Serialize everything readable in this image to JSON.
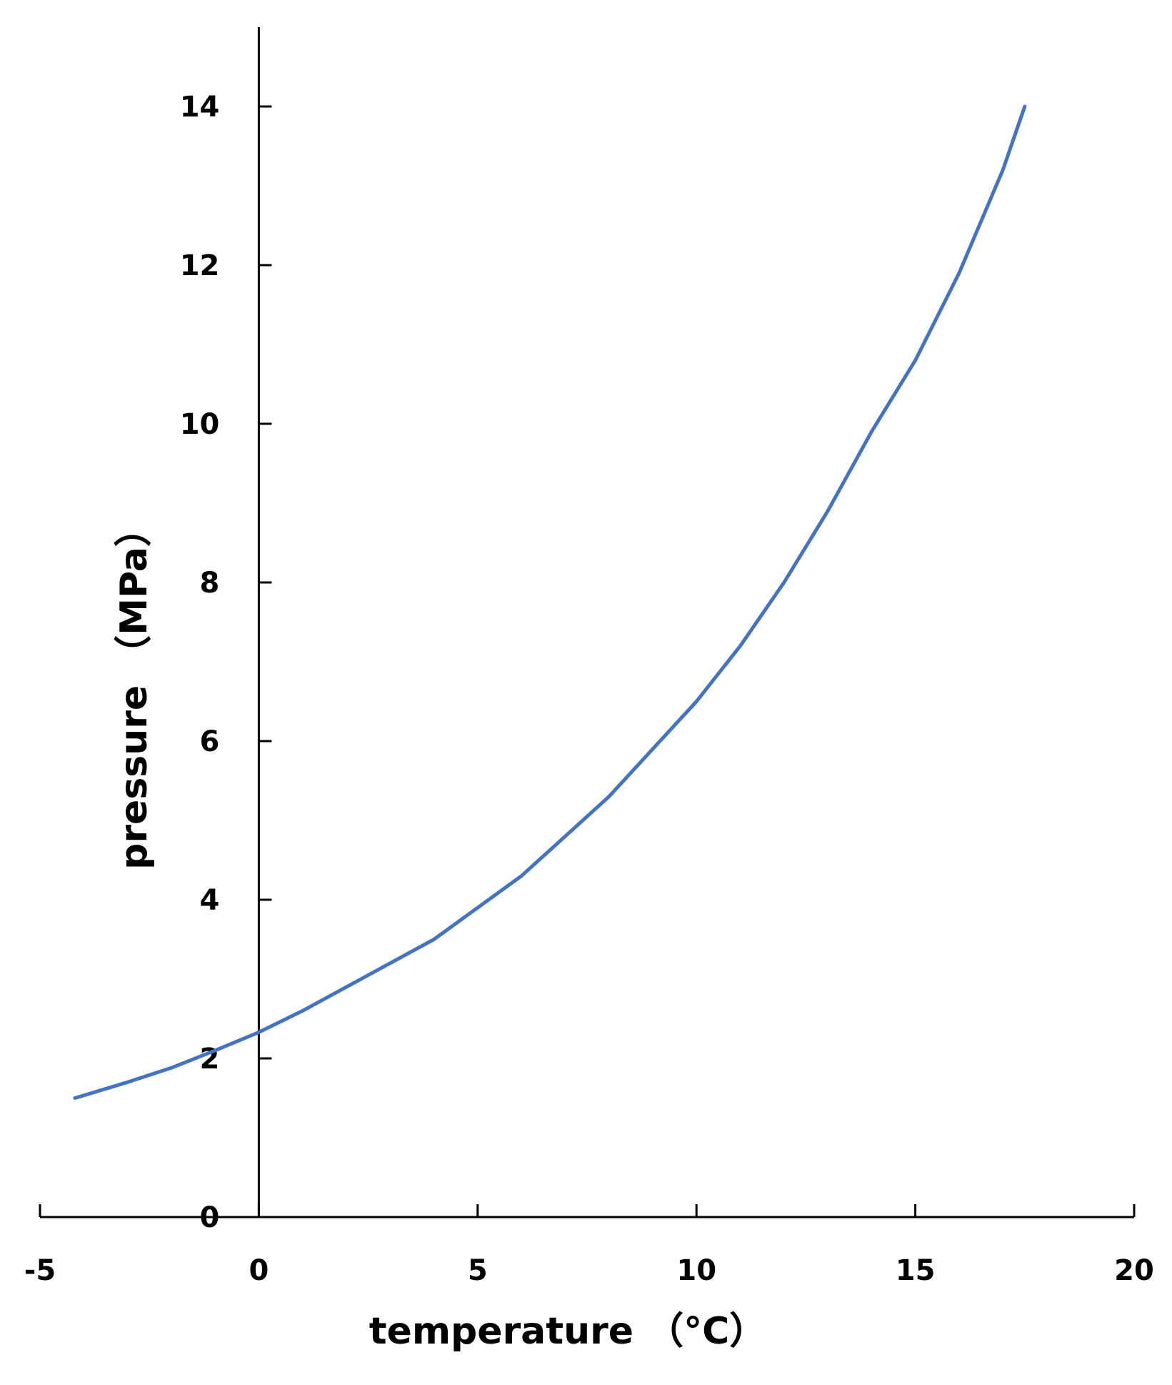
{
  "chart_data": {
    "type": "line",
    "title": "",
    "xlabel": "temperature （°C）",
    "ylabel": "pressure （MPa）",
    "xlim": [
      -5,
      20
    ],
    "ylim": [
      0,
      15
    ],
    "xticks": [
      "-5",
      "0",
      "5",
      "10",
      "15",
      "20"
    ],
    "yticks": [
      "0",
      "2",
      "4",
      "6",
      "8",
      "10",
      "12",
      "14"
    ],
    "grid": false,
    "legend": "none",
    "series": [
      {
        "color": "#4472C4",
        "x": [
          -4.2,
          -3,
          -2,
          -1,
          0,
          1,
          2,
          3,
          4,
          5,
          6,
          7,
          8,
          9,
          10,
          11,
          12,
          13,
          14,
          15,
          16,
          17,
          17.5
        ],
        "y": [
          1.5,
          1.7,
          1.88,
          2.1,
          2.33,
          2.6,
          2.9,
          3.2,
          3.5,
          3.9,
          4.3,
          4.8,
          5.3,
          5.9,
          6.5,
          7.2,
          8.0,
          8.9,
          9.9,
          10.8,
          11.9,
          13.2,
          14.0
        ]
      }
    ]
  }
}
